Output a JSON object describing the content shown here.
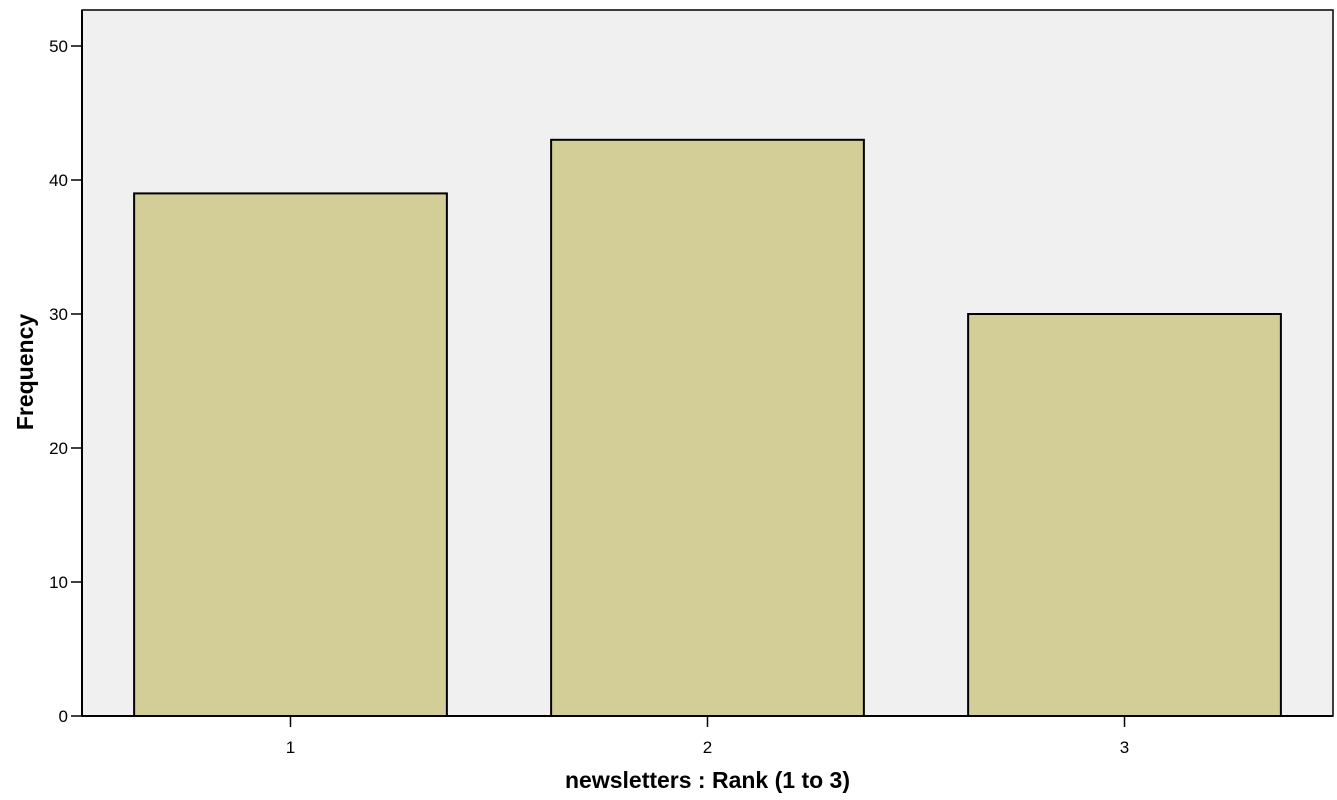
{
  "chart_data": {
    "type": "bar",
    "title": "",
    "xlabel": "newsletters : Rank (1 to 3)",
    "ylabel": "Frequency",
    "categories": [
      "1",
      "2",
      "3"
    ],
    "values": [
      39,
      43,
      30
    ],
    "ylim": [
      0,
      50
    ],
    "yticks": [
      0,
      10,
      20,
      30,
      40,
      50
    ],
    "grid": false,
    "legend": "none",
    "colors": {
      "plot_background": "#f0f0f0",
      "bar_fill": "#d3ce97",
      "bar_stroke": "#000000",
      "axis": "#000000"
    }
  }
}
